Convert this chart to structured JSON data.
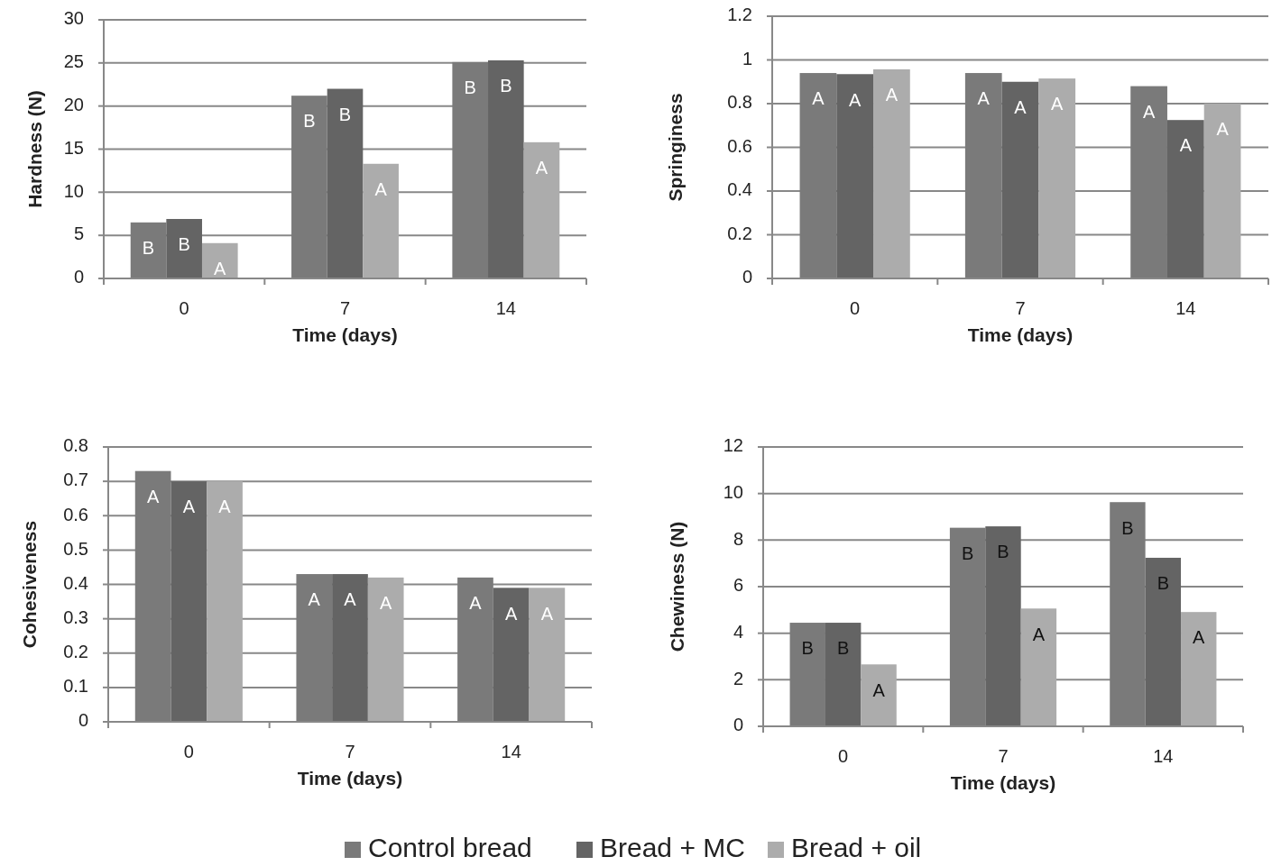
{
  "chart_data": [
    {
      "type": "bar",
      "xlabel": "Time (days)",
      "ylabel": "Hardness (N)",
      "categories": [
        "0",
        "7",
        "14"
      ],
      "ylim": [
        0,
        30
      ],
      "yticks": [
        0,
        5,
        10,
        15,
        20,
        25,
        30
      ],
      "grid": "y",
      "legend": "bottom",
      "series": [
        {
          "name": "Control bread",
          "color": "#7a7a7a",
          "values": [
            6.5,
            21.2,
            25.1
          ],
          "value_labels": [
            "B",
            "B",
            "B"
          ]
        },
        {
          "name": "Bread + MC",
          "color": "#646464",
          "values": [
            6.9,
            22.0,
            25.3
          ],
          "value_labels": [
            "B",
            "B",
            "B"
          ]
        },
        {
          "name": "Bread + oil",
          "color": "#acacac",
          "values": [
            4.1,
            13.3,
            15.8
          ],
          "value_labels": [
            "A",
            "A",
            "A"
          ]
        }
      ]
    },
    {
      "type": "bar",
      "xlabel": "Time (days)",
      "ylabel": "Springiness",
      "categories": [
        "0",
        "7",
        "14"
      ],
      "ylim": [
        0,
        1.2
      ],
      "yticks": [
        0,
        0.2,
        0.4,
        0.6,
        0.8,
        1,
        1.2
      ],
      "grid": "y",
      "series": [
        {
          "color": "#7a7a7a",
          "values": [
            0.94,
            0.94,
            0.88
          ],
          "value_labels": [
            "A",
            "A",
            "A"
          ]
        },
        {
          "color": "#646464",
          "values": [
            0.935,
            0.9,
            0.725
          ],
          "value_labels": [
            "A",
            "A",
            "A"
          ]
        },
        {
          "color": "#acacac",
          "values": [
            0.957,
            0.915,
            0.8
          ],
          "value_labels": [
            "A",
            "A",
            "A"
          ]
        }
      ]
    },
    {
      "type": "bar",
      "xlabel": "Time (days)",
      "ylabel": "Cohesiveness",
      "categories": [
        "0",
        "7",
        "14"
      ],
      "ylim": [
        0,
        0.8
      ],
      "yticks": [
        0,
        0.1,
        0.2,
        0.3,
        0.4,
        0.5,
        0.6,
        0.7,
        0.8
      ],
      "grid": "y",
      "series": [
        {
          "color": "#7a7a7a",
          "values": [
            0.73,
            0.43,
            0.42
          ],
          "value_labels": [
            "A",
            "A",
            "A"
          ]
        },
        {
          "color": "#646464",
          "values": [
            0.7,
            0.43,
            0.39
          ],
          "value_labels": [
            "A",
            "A",
            "A"
          ]
        },
        {
          "color": "#acacac",
          "values": [
            0.7,
            0.42,
            0.39
          ],
          "value_labels": [
            "A",
            "A",
            "A"
          ]
        }
      ]
    },
    {
      "type": "bar",
      "xlabel": "Time (days)",
      "ylabel": "Chewiness (N)",
      "categories": [
        "0",
        "7",
        "14"
      ],
      "ylim": [
        0,
        12
      ],
      "yticks": [
        0,
        2,
        4,
        6,
        8,
        10,
        12
      ],
      "grid": "y",
      "series": [
        {
          "color": "#7a7a7a",
          "values": [
            4.45,
            8.53,
            9.63
          ],
          "value_labels": [
            "B",
            "B",
            "B"
          ]
        },
        {
          "color": "#646464",
          "values": [
            4.45,
            8.59,
            7.24
          ],
          "value_labels": [
            "B",
            "B",
            "B"
          ]
        },
        {
          "color": "#acacac",
          "values": [
            2.66,
            5.06,
            4.91
          ],
          "value_labels": [
            "A",
            "A",
            "A"
          ]
        }
      ]
    }
  ]
}
